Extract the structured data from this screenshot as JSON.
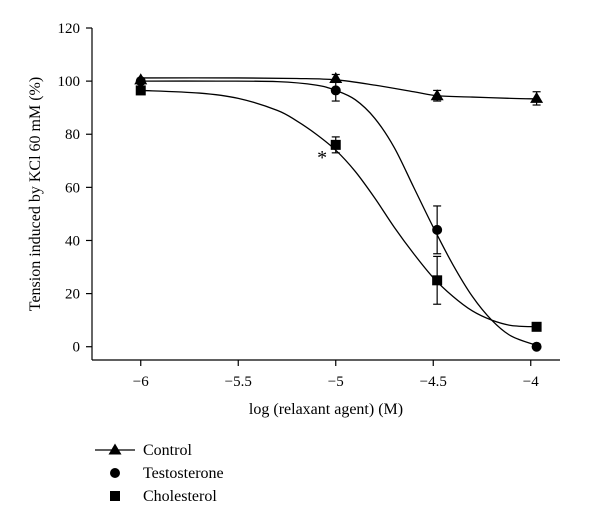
{
  "chart_data": {
    "type": "line",
    "title": "",
    "xlabel": "log (relaxant agent) (M)",
    "ylabel": "Tension induced by KCl 60 mM (%)",
    "xlim": [
      -6.25,
      -3.85
    ],
    "ylim": [
      -5,
      120
    ],
    "xticks": [
      -6,
      -5.5,
      -5,
      -4.5,
      -4
    ],
    "xtick_labels": [
      "-6",
      "-5.5",
      "-5",
      "-4.5",
      "-4"
    ],
    "yticks": [
      0,
      20,
      40,
      60,
      80,
      100,
      120
    ],
    "ytick_labels": [
      "0",
      "20",
      "40",
      "60",
      "80",
      "100",
      "120"
    ],
    "grid": false,
    "legend_position": "bottom-left",
    "series": [
      {
        "name": "Control",
        "marker": "triangle",
        "x": [
          -6,
          -5,
          -4.48,
          -3.97
        ],
        "y": [
          100.5,
          101,
          94.5,
          93.5
        ],
        "err": [
          0,
          1.5,
          2,
          2.5
        ],
        "curve_x": [
          -6,
          -5.5,
          -5.2,
          -5,
          -4.8,
          -4.6,
          -4.48,
          -4.3,
          -4.1,
          -3.97
        ],
        "curve_y": [
          101.2,
          101.2,
          101,
          100.5,
          98.5,
          96,
          94.5,
          94,
          93.5,
          93.3
        ]
      },
      {
        "name": "Testosterone",
        "marker": "circle",
        "x": [
          -6,
          -5,
          -4.48,
          -3.97
        ],
        "y": [
          100,
          96.5,
          44,
          0
        ],
        "err": [
          0,
          4,
          9,
          0
        ],
        "curve_x": [
          -6,
          -5.6,
          -5.3,
          -5.1,
          -5,
          -4.9,
          -4.8,
          -4.7,
          -4.6,
          -4.5,
          -4.4,
          -4.3,
          -4.2,
          -4.1,
          -3.97
        ],
        "curve_y": [
          100,
          100,
          99.8,
          98.5,
          96.5,
          93,
          86,
          75,
          60,
          45,
          31,
          19,
          10,
          4,
          0.5
        ]
      },
      {
        "name": "Cholesterol",
        "marker": "square",
        "x": [
          -6,
          -5,
          -4.48,
          -3.97
        ],
        "y": [
          96.5,
          76,
          25,
          7.5
        ],
        "err": [
          0,
          3,
          9,
          0
        ],
        "curve_x": [
          -6,
          -5.7,
          -5.5,
          -5.3,
          -5.2,
          -5.1,
          -5,
          -4.9,
          -4.8,
          -4.7,
          -4.6,
          -4.5,
          -4.4,
          -4.3,
          -4.2,
          -4.1,
          -3.97
        ],
        "curve_y": [
          96.5,
          95.5,
          93.5,
          89,
          85,
          80,
          74,
          66,
          56,
          45,
          35,
          26,
          19,
          13.5,
          10,
          8,
          7.5
        ]
      }
    ],
    "annotations": [
      {
        "text": "*",
        "x": -5.07,
        "y": 74
      }
    ]
  }
}
